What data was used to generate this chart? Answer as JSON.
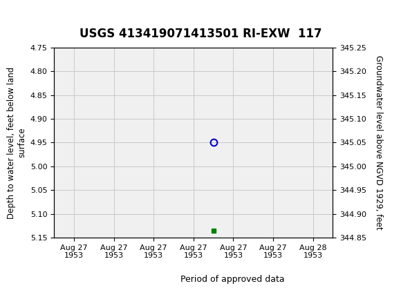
{
  "title": "USGS 413419071413501 RI-EXW  117",
  "ylabel_left": "Depth to water level, feet below land\nsurface",
  "ylabel_right": "Groundwater level above NGVD 1929, feet",
  "ylim_left_top": 4.75,
  "ylim_left_bottom": 5.15,
  "ylim_right_top": 345.25,
  "ylim_right_bottom": 344.85,
  "yticks_left": [
    4.75,
    4.8,
    4.85,
    4.9,
    4.95,
    5.0,
    5.05,
    5.1,
    5.15
  ],
  "ytick_labels_left": [
    "4.75",
    "4.80",
    "4.85",
    "4.90",
    "4.95",
    "5.00",
    "5.05",
    "5.10",
    "5.15"
  ],
  "yticks_right": [
    345.25,
    345.2,
    345.15,
    345.1,
    345.05,
    345.0,
    344.95,
    344.9,
    344.85
  ],
  "ytick_labels_right": [
    "345.25",
    "345.20",
    "345.15",
    "345.10",
    "345.05",
    "345.00",
    "344.95",
    "344.90",
    "344.85"
  ],
  "xtick_labels": [
    "Aug 27\n1953",
    "Aug 27\n1953",
    "Aug 27\n1953",
    "Aug 27\n1953",
    "Aug 27\n1953",
    "Aug 27\n1953",
    "Aug 28\n1953"
  ],
  "n_xticks": 7,
  "x_range_min": -0.5,
  "x_range_max": 6.5,
  "data_point_x": 3.5,
  "data_point_y": 4.95,
  "green_square_x": 3.5,
  "green_square_y": 5.135,
  "header_bg": "#1a6b3c",
  "header_text_color": "#ffffff",
  "plot_bg": "#f0f0f0",
  "grid_color": "#c8c8c8",
  "circle_color": "#0000cc",
  "square_color": "#008000",
  "legend_label": "Period of approved data",
  "title_fontsize": 12,
  "tick_fontsize": 8,
  "ylabel_fontsize": 8.5
}
